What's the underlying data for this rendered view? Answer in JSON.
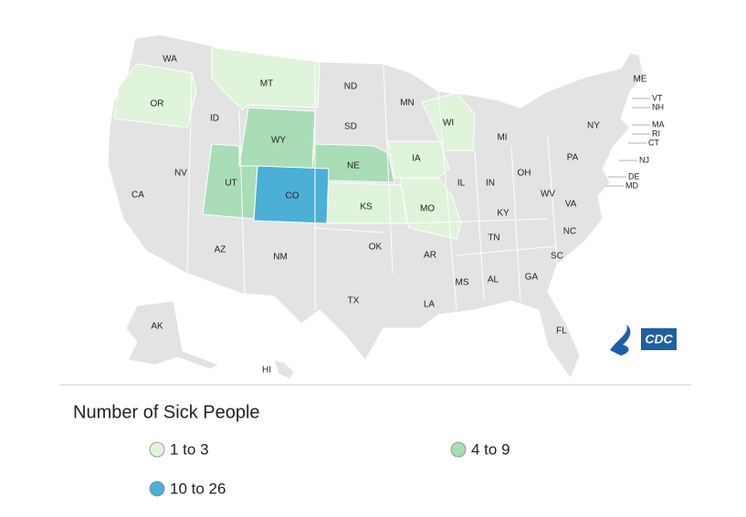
{
  "map": {
    "legend": {
      "title": "Number of Sick People",
      "items": [
        {
          "label": "1 to 3",
          "color": "#e0f3db",
          "states": [
            "OR",
            "MT",
            "WI",
            "IA",
            "KS",
            "MO"
          ]
        },
        {
          "label": "4 to 9",
          "color": "#a8ddb5",
          "states": [
            "WY",
            "UT",
            "NE"
          ]
        },
        {
          "label": "10 to 26",
          "color": "#4bafd6",
          "states": [
            "CO"
          ]
        }
      ]
    },
    "base_color": "#e3e3e3",
    "other_states": [
      "WA",
      "ID",
      "NV",
      "CA",
      "AZ",
      "NM",
      "ND",
      "SD",
      "TX",
      "OK",
      "MN",
      "AR",
      "LA",
      "MS",
      "AL",
      "IL",
      "IN",
      "MI",
      "OH",
      "KY",
      "TN",
      "GA",
      "FL",
      "SC",
      "NC",
      "VA",
      "WV",
      "PA",
      "NY",
      "ME",
      "VT",
      "NH",
      "MA",
      "RI",
      "CT",
      "NJ",
      "DE",
      "MD",
      "AK",
      "HI"
    ],
    "logo": "CDC"
  }
}
